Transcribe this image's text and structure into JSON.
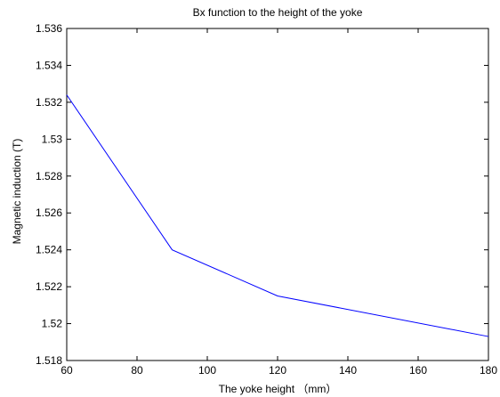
{
  "chart_data": {
    "type": "line",
    "title": "Bx function to the height of the yoke",
    "xlabel": "The yoke height （mm）",
    "ylabel": "Magnetic induction (T)",
    "xlim": [
      60,
      180
    ],
    "ylim": [
      1.518,
      1.536
    ],
    "xticks": [
      60,
      80,
      100,
      120,
      140,
      160,
      180
    ],
    "xtick_labels": [
      "60",
      "80",
      "100",
      "120",
      "140",
      "160",
      "180"
    ],
    "yticks": [
      1.518,
      1.52,
      1.522,
      1.524,
      1.526,
      1.528,
      1.53,
      1.532,
      1.534,
      1.536
    ],
    "ytick_labels": [
      "1.518",
      "1.52",
      "1.522",
      "1.524",
      "1.526",
      "1.528",
      "1.53",
      "1.532",
      "1.534",
      "1.536"
    ],
    "grid": false,
    "series": [
      {
        "x": [
          60,
          90,
          120,
          180
        ],
        "y": [
          1.5324,
          1.524,
          1.5215,
          1.5193
        ],
        "color": "#0000ff"
      }
    ]
  }
}
